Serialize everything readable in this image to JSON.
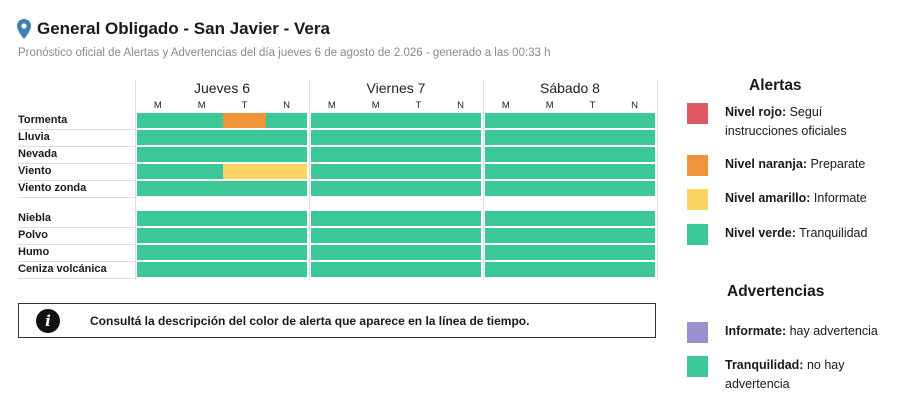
{
  "header": {
    "title": "General Obligado - San Javier - Vera",
    "subtitle": "Pronóstico oficial de Alertas y Advertencias del día jueves 6 de agosto de 2.026 - generado a las 00:33 h"
  },
  "days": [
    {
      "label": "Jueves 6",
      "slots": [
        "M",
        "M",
        "T",
        "N"
      ]
    },
    {
      "label": "Viernes 7",
      "slots": [
        "M",
        "M",
        "T",
        "N"
      ]
    },
    {
      "label": "Sábado 8",
      "slots": [
        "M",
        "M",
        "T",
        "N"
      ]
    }
  ],
  "alert_rows": [
    {
      "label": "Tormenta",
      "levels": [
        "verde",
        "verde",
        "naranja",
        "verde",
        "verde",
        "verde",
        "verde",
        "verde",
        "verde",
        "verde",
        "verde",
        "verde"
      ]
    },
    {
      "label": "Lluvia",
      "levels": [
        "verde",
        "verde",
        "verde",
        "verde",
        "verde",
        "verde",
        "verde",
        "verde",
        "verde",
        "verde",
        "verde",
        "verde"
      ]
    },
    {
      "label": "Nevada",
      "levels": [
        "verde",
        "verde",
        "verde",
        "verde",
        "verde",
        "verde",
        "verde",
        "verde",
        "verde",
        "verde",
        "verde",
        "verde"
      ]
    },
    {
      "label": "Viento",
      "levels": [
        "verde",
        "verde",
        "amarillo",
        "amarillo",
        "verde",
        "verde",
        "verde",
        "verde",
        "verde",
        "verde",
        "verde",
        "verde"
      ]
    },
    {
      "label": "Viento zonda",
      "levels": [
        "verde",
        "verde",
        "verde",
        "verde",
        "verde",
        "verde",
        "verde",
        "verde",
        "verde",
        "verde",
        "verde",
        "verde"
      ]
    }
  ],
  "warning_rows": [
    {
      "label": "Niebla",
      "levels": [
        "verde",
        "verde",
        "verde",
        "verde",
        "verde",
        "verde",
        "verde",
        "verde",
        "verde",
        "verde",
        "verde",
        "verde"
      ]
    },
    {
      "label": "Polvo",
      "levels": [
        "verde",
        "verde",
        "verde",
        "verde",
        "verde",
        "verde",
        "verde",
        "verde",
        "verde",
        "verde",
        "verde",
        "verde"
      ]
    },
    {
      "label": "Humo",
      "levels": [
        "verde",
        "verde",
        "verde",
        "verde",
        "verde",
        "verde",
        "verde",
        "verde",
        "verde",
        "verde",
        "verde",
        "verde"
      ]
    },
    {
      "label": "Ceniza volcánica",
      "levels": [
        "verde",
        "verde",
        "verde",
        "verde",
        "verde",
        "verde",
        "verde",
        "verde",
        "verde",
        "verde",
        "verde",
        "verde"
      ]
    }
  ],
  "colors": {
    "verde": "#3cc896",
    "naranja": "#f0943a",
    "amarillo": "#fcd462",
    "rojo": "#e05a66",
    "violeta": "#9b8fd0",
    "pin": "#3f7fb8"
  },
  "info": {
    "icon": "info-icon",
    "glyph": "i",
    "text": "Consultá la descripción del color de alerta que aparece en la línea de tiempo."
  },
  "legend": {
    "alerts_title": "Alertas",
    "alerts": [
      {
        "color": "#e05a66",
        "bold": "Nivel rojo:",
        "text": " Seguí instrucciones oficiales"
      },
      {
        "color": "#f0943a",
        "bold": "Nivel naranja:",
        "text": " Preparate"
      },
      {
        "color": "#fcd462",
        "bold": "Nivel amarillo:",
        "text": " Informate"
      },
      {
        "color": "#3cc896",
        "bold": "Nivel verde:",
        "text": " Tranquilidad"
      }
    ],
    "warnings_title": "Advertencias",
    "warnings": [
      {
        "color": "#9b8fd0",
        "bold": "Informate:",
        "text": " hay advertencia"
      },
      {
        "color": "#3cc896",
        "bold": "Tranquilidad:",
        "text": " no hay advertencia"
      }
    ]
  }
}
